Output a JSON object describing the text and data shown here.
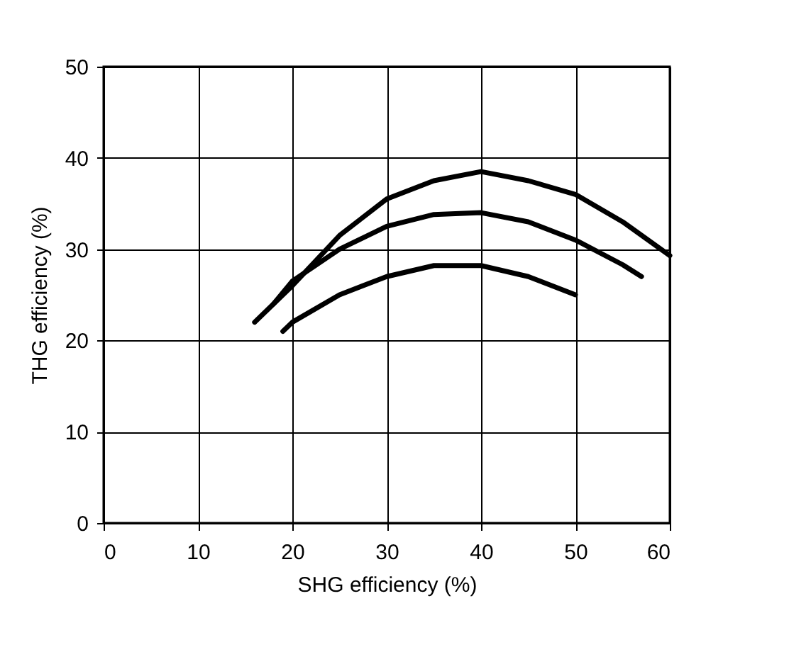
{
  "chart_data": {
    "type": "line",
    "xlabel": "SHG efficiency (%)",
    "ylabel": "THG efficiency (%)",
    "xlim": [
      0,
      60
    ],
    "ylim": [
      0,
      50
    ],
    "xticks": [
      0,
      10,
      20,
      30,
      40,
      50,
      60
    ],
    "yticks": [
      0,
      10,
      20,
      30,
      40,
      50
    ],
    "grid": true,
    "marker": "none",
    "line_style": "solid",
    "series": [
      {
        "color": "#000000",
        "x": [
          16,
          20,
          25,
          30,
          35,
          40,
          45,
          50,
          55,
          60
        ],
        "values": [
          22,
          26,
          31.5,
          35.5,
          37.5,
          38.5,
          37.5,
          36,
          33,
          29.3
        ]
      },
      {
        "color": "#000000",
        "x": [
          18,
          20,
          25,
          30,
          35,
          40,
          45,
          50,
          55,
          57
        ],
        "values": [
          24,
          26.5,
          30,
          32.5,
          33.8,
          34,
          33,
          31,
          28.3,
          27
        ]
      },
      {
        "color": "#000000",
        "x": [
          19,
          20,
          25,
          30,
          35,
          40,
          45,
          50
        ],
        "values": [
          21,
          22,
          25,
          27,
          28.2,
          28.2,
          27,
          25
        ]
      }
    ]
  }
}
